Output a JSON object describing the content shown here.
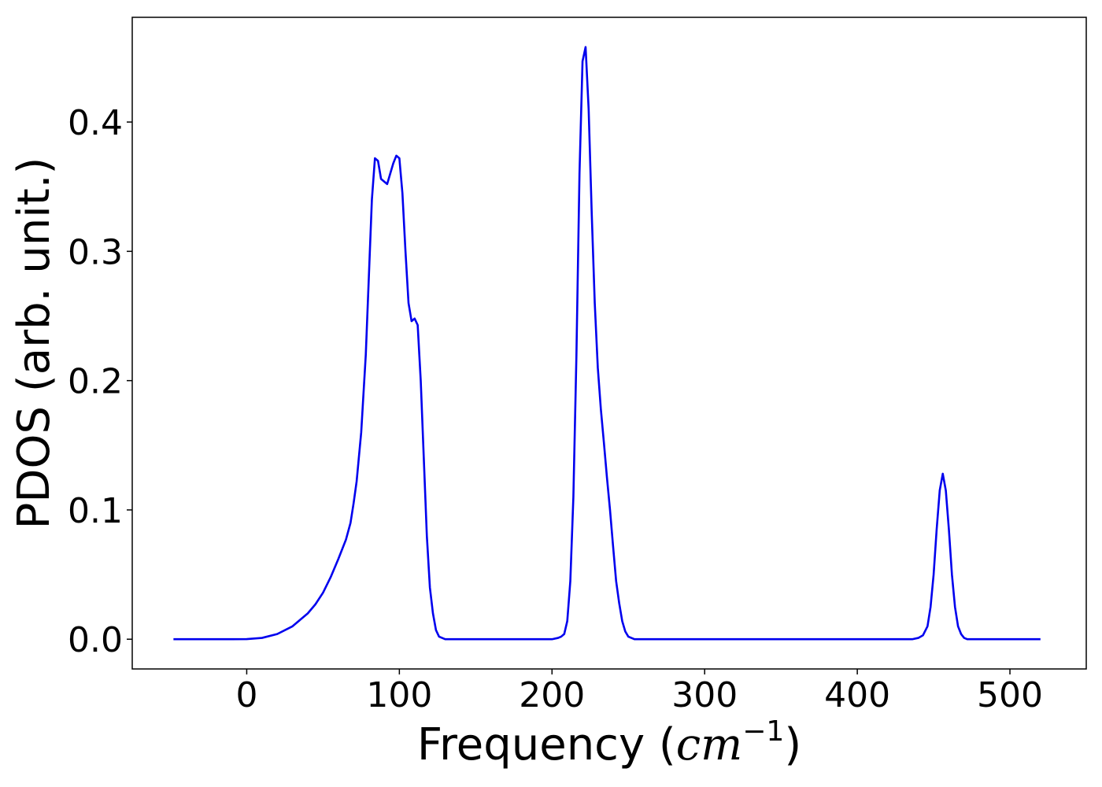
{
  "chart_data": {
    "type": "line",
    "xlabel": {
      "prefix": "Frequency (",
      "math_base": "cm",
      "math_sup": "−1",
      "suffix": ")"
    },
    "ylabel": "PDOS (arb. unit.)",
    "xlim": [
      -75,
      550
    ],
    "ylim": [
      -0.023,
      0.481
    ],
    "x_ticks": [
      0,
      100,
      200,
      300,
      400,
      500
    ],
    "x_tick_labels": [
      "0",
      "100",
      "200",
      "300",
      "400",
      "500"
    ],
    "y_ticks": [
      0.0,
      0.1,
      0.2,
      0.3,
      0.4
    ],
    "y_tick_labels": [
      "0.0",
      "0.1",
      "0.2",
      "0.3",
      "0.4"
    ],
    "grid": false,
    "series": [
      {
        "color": "#0000ee",
        "x": [
          -48,
          -30,
          -10,
          0,
          10,
          20,
          30,
          40,
          45,
          50,
          55,
          60,
          65,
          68,
          70,
          72,
          75,
          78,
          80,
          82,
          84,
          86,
          88,
          90,
          92,
          94,
          96,
          98,
          100,
          102,
          104,
          106,
          108,
          110,
          112,
          114,
          116,
          118,
          120,
          122,
          124,
          126,
          128,
          130,
          132,
          134,
          136,
          138,
          140,
          145,
          160,
          180,
          200,
          204,
          206,
          208,
          210,
          212,
          214,
          216,
          218,
          220,
          222,
          224,
          226,
          228,
          230,
          232,
          234,
          236,
          238,
          240,
          242,
          244,
          246,
          248,
          250,
          252,
          254,
          256,
          258,
          260,
          262,
          264,
          266,
          270,
          300,
          350,
          400,
          436,
          440,
          443,
          446,
          448,
          450,
          452,
          454,
          456,
          458,
          460,
          462,
          464,
          466,
          468,
          470,
          472,
          474,
          476,
          478,
          480,
          485,
          500,
          520
        ],
        "y": [
          0.0,
          0.0,
          0.0,
          0.0001,
          0.001,
          0.004,
          0.01,
          0.02,
          0.027,
          0.036,
          0.048,
          0.062,
          0.077,
          0.09,
          0.105,
          0.122,
          0.16,
          0.22,
          0.28,
          0.34,
          0.372,
          0.37,
          0.356,
          0.354,
          0.352,
          0.36,
          0.368,
          0.374,
          0.372,
          0.345,
          0.3,
          0.26,
          0.246,
          0.248,
          0.243,
          0.2,
          0.14,
          0.08,
          0.04,
          0.02,
          0.007,
          0.002,
          0.001,
          0.0,
          0.0,
          0.0,
          0.0,
          0.0,
          0.0,
          0.0,
          0.0,
          0.0,
          0.0,
          0.001,
          0.002,
          0.004,
          0.014,
          0.045,
          0.11,
          0.22,
          0.36,
          0.447,
          0.458,
          0.41,
          0.33,
          0.26,
          0.21,
          0.178,
          0.152,
          0.125,
          0.1,
          0.072,
          0.045,
          0.028,
          0.014,
          0.006,
          0.002,
          0.001,
          0.0,
          0.0,
          0.0,
          0.0,
          0.0,
          0.0,
          0.0,
          0.0,
          0.0,
          0.0,
          0.0,
          0.0,
          0.001,
          0.003,
          0.01,
          0.025,
          0.05,
          0.085,
          0.115,
          0.128,
          0.115,
          0.085,
          0.05,
          0.025,
          0.01,
          0.004,
          0.001,
          0.0,
          0.0,
          0.0,
          0.0,
          0.0,
          0.0,
          0.0,
          0.0
        ]
      }
    ]
  }
}
